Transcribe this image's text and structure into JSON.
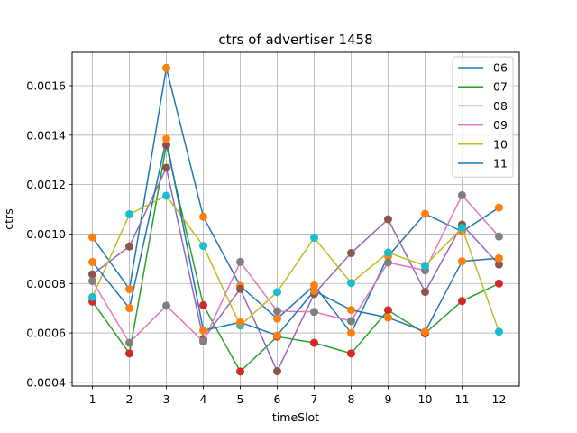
{
  "chart_data": {
    "type": "line",
    "title": "ctrs of advertiser 1458",
    "xlabel": "timeSlot",
    "ylabel": "ctrs",
    "x": [
      1,
      2,
      3,
      4,
      5,
      6,
      7,
      8,
      9,
      10,
      11,
      12
    ],
    "xlim": [
      0.45,
      12.55
    ],
    "ylim": [
      0.000385,
      0.001735
    ],
    "yticks": [
      0.0004,
      0.0006,
      0.0008,
      0.001,
      0.0012,
      0.0014,
      0.0016
    ],
    "ytick_labels": [
      "0.0004",
      "0.0006",
      "0.0008",
      "0.0010",
      "0.0012",
      "0.0014",
      "0.0016"
    ],
    "grid": true,
    "legend": "top-right",
    "series": [
      {
        "name": "06",
        "color": "#1f77b4",
        "marker_color": "#ff7f0e",
        "values": [
          0.000987,
          0.000777,
          0.001672,
          0.00107,
          0.00079,
          0.000658,
          0.000792,
          0.0006,
          0.00091,
          0.001082,
          0.00101,
          0.001107
        ]
      },
      {
        "name": "07",
        "color": "#2ca02c",
        "marker_color": "#d62728",
        "values": [
          0.000727,
          0.000517,
          0.00136,
          0.000712,
          0.000444,
          0.000585,
          0.00056,
          0.000517,
          0.000692,
          0.000598,
          0.000729,
          0.0008
        ]
      },
      {
        "name": "08",
        "color": "#9467bd",
        "marker_color": "#8c564b",
        "values": [
          0.000837,
          0.00095,
          0.001268,
          0.000575,
          0.000778,
          0.000445,
          0.000758,
          0.000923,
          0.00106,
          0.000766,
          0.001038,
          0.000877
        ]
      },
      {
        "name": "09",
        "color": "#e377c2",
        "marker_color": "#7f7f7f",
        "values": [
          0.00081,
          0.00056,
          0.00071,
          0.000565,
          0.000887,
          0.000688,
          0.000685,
          0.000648,
          0.000885,
          0.000853,
          0.001157,
          0.00099
        ]
      },
      {
        "name": "10",
        "color": "#bcbd22",
        "marker_color": "#17becf",
        "values": [
          0.000745,
          0.00108,
          0.001155,
          0.000952,
          0.00063,
          0.000765,
          0.000985,
          0.000802,
          0.000925,
          0.000872,
          0.001025,
          0.000605
        ]
      },
      {
        "name": "11",
        "color": "#1f77b4",
        "marker_color": "#ff7f0e",
        "values": [
          0.000887,
          0.0007,
          0.001385,
          0.00061,
          0.000643,
          0.00059,
          0.00077,
          0.000693,
          0.000662,
          0.000605,
          0.00089,
          0.000902
        ]
      }
    ]
  }
}
